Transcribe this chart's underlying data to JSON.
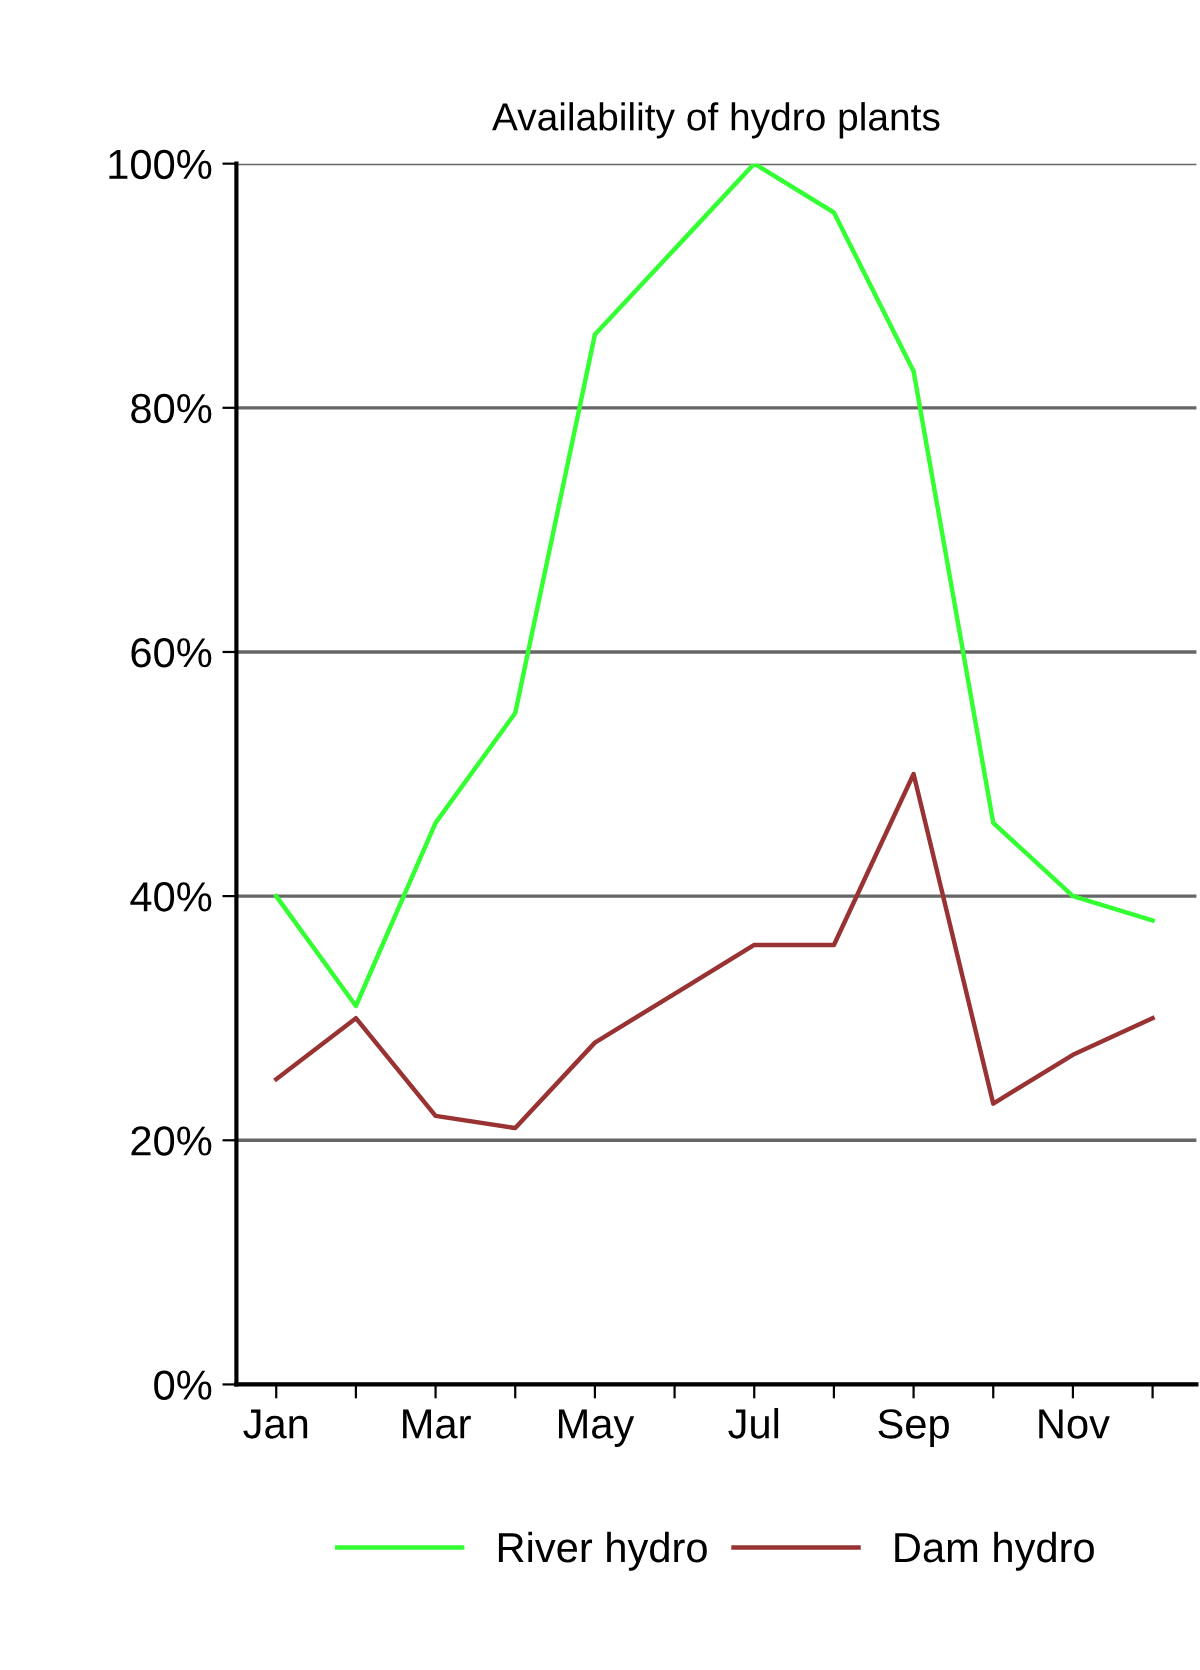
{
  "chart_data": {
    "type": "line",
    "title": "Availability of hydro plants",
    "categories": [
      "Jan",
      null,
      "Mar",
      null,
      "May",
      null,
      "Jul",
      null,
      "Sep",
      null,
      "Nov",
      null
    ],
    "series": [
      {
        "name": "River hydro",
        "color": "#33ff33",
        "values": [
          40,
          31,
          46,
          55,
          86,
          93,
          100,
          96,
          83,
          46,
          40,
          38
        ]
      },
      {
        "name": "Dam hydro",
        "color": "#993333",
        "values": [
          25,
          30,
          22,
          21,
          28,
          32,
          36,
          36,
          50,
          23,
          27,
          30
        ]
      }
    ],
    "ylim": [
      0,
      100
    ],
    "yticks": [
      {
        "value": 0,
        "label": "0%"
      },
      {
        "value": 20,
        "label": "20%"
      },
      {
        "value": 40,
        "label": "40%"
      },
      {
        "value": 60,
        "label": "60%"
      },
      {
        "value": 80,
        "label": "80%"
      },
      {
        "value": 100,
        "label": "100%"
      }
    ],
    "grid": "y",
    "legend": "bottom",
    "marker": "none",
    "line_style": "solid"
  }
}
